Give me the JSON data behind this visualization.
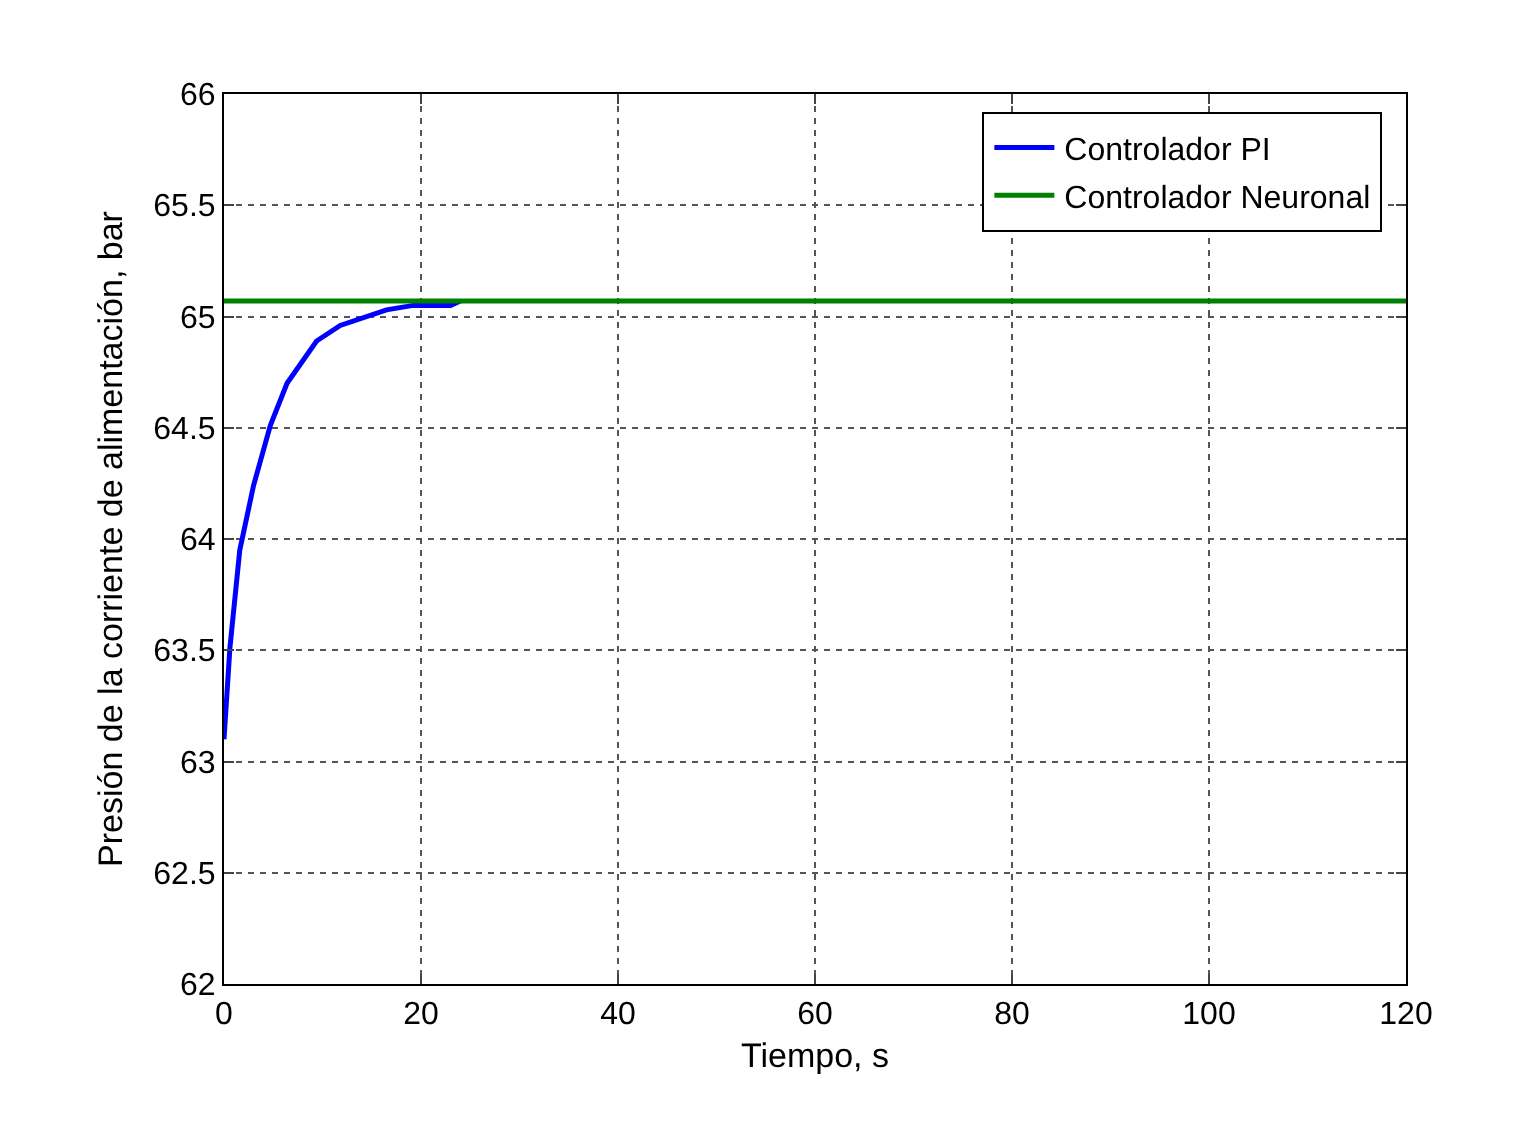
{
  "chart_data": {
    "type": "line",
    "xlabel": "Tiempo, s",
    "ylabel": "Presión de la corriente de alimentación, bar",
    "xlim": [
      0,
      120
    ],
    "xticks": [
      0,
      20,
      40,
      60,
      80,
      100,
      120
    ],
    "ylim": [
      62,
      66
    ],
    "yticks": [
      62,
      62.5,
      63,
      63.5,
      64,
      64.5,
      65,
      65.5,
      66
    ],
    "grid": true,
    "legend": "top right",
    "marker": "none",
    "line_style": "solid",
    "series": [
      {
        "name": "Controlador PI",
        "color": "#0000ff",
        "x": [
          0,
          0.6,
          1.6,
          3.0,
          4.7,
          6.4,
          9.4,
          11.8,
          16.5,
          19.2,
          23,
          24
        ],
        "values": [
          63.1,
          63.51,
          63.95,
          64.24,
          64.51,
          64.7,
          64.89,
          64.96,
          65.03,
          65.05,
          65.05,
          65.07
        ]
      },
      {
        "name": "Controlador Neuronal",
        "color": "#008000",
        "x": [
          0,
          120
        ],
        "values": [
          65.07,
          65.07
        ]
      }
    ]
  }
}
